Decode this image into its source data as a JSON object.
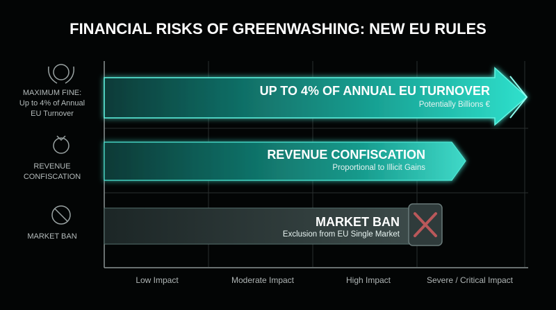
{
  "header": {
    "title": "FINANCIAL RISKS OF GREENWASHING: NEW EU RULES"
  },
  "rows": [
    {
      "label_lines": [
        "MAXIMUM FINE:",
        "Up to 4% of Annual",
        "EU Turnover"
      ],
      "title": "UP TO 4% OF ANNUAL EU TURNOVER",
      "subtitle": "Potentially Billions €"
    },
    {
      "label_lines": [
        "REVENUE",
        "CONFISCATION"
      ],
      "title": "REVENUE CONFISCATION",
      "subtitle": "Proportional to Illicit Gains"
    },
    {
      "label_lines": [
        "MARKET BAN"
      ],
      "title": "MARKET BAN",
      "subtitle": "Exclusion from EU Single Market"
    }
  ],
  "x_axis": {
    "labels": [
      "Low Impact",
      "Moderate Impact",
      "High Impact",
      "Severe / Critical Impact"
    ]
  }
}
